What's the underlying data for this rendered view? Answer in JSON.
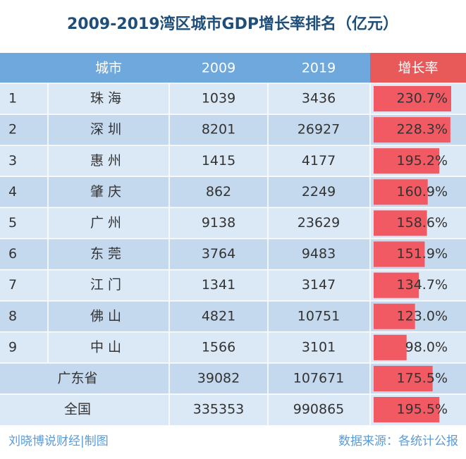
{
  "header": {
    "title": "2009-2019湾区城市GDP增长率排名（亿元）"
  },
  "table": {
    "columns": [
      "城市",
      "2009",
      "2019",
      "增长率"
    ],
    "rows": [
      {
        "rank": "1",
        "city": "珠 海",
        "v2009": 1039,
        "v2019": 3436,
        "growth": {
          "value": 230.7,
          "label": "230.7%"
        }
      },
      {
        "rank": "2",
        "city": "深 圳",
        "v2009": 8201,
        "v2019": 26927,
        "growth": {
          "value": 228.3,
          "label": "228.3%"
        }
      },
      {
        "rank": "3",
        "city": "惠 州",
        "v2009": 1415,
        "v2019": 4177,
        "growth": {
          "value": 195.2,
          "label": "195.2%"
        }
      },
      {
        "rank": "4",
        "city": "肇 庆",
        "v2009": 862,
        "v2019": 2249,
        "growth": {
          "value": 160.9,
          "label": "160.9%"
        }
      },
      {
        "rank": "5",
        "city": "广 州",
        "v2009": 9138,
        "v2019": 23629,
        "growth": {
          "value": 158.6,
          "label": "158.6%"
        }
      },
      {
        "rank": "6",
        "city": "东 莞",
        "v2009": 3764,
        "v2019": 9483,
        "growth": {
          "value": 151.9,
          "label": "151.9%"
        }
      },
      {
        "rank": "7",
        "city": "江 门",
        "v2009": 1341,
        "v2019": 3147,
        "growth": {
          "value": 134.7,
          "label": "134.7%"
        }
      },
      {
        "rank": "8",
        "city": "佛 山",
        "v2009": 4821,
        "v2019": 10751,
        "growth": {
          "value": 123.0,
          "label": "123.0%"
        }
      },
      {
        "rank": "9",
        "city": "中 山",
        "v2009": 1566,
        "v2019": 3101,
        "growth": {
          "value": 98.0,
          "label": "98.0%"
        }
      },
      {
        "city": "广东省",
        "v2009": 39082,
        "v2019": 107671,
        "growth": {
          "value": 175.5,
          "label": "175.5%"
        }
      },
      {
        "city": "全国",
        "v2009": 335353,
        "v2019": 990865,
        "growth": {
          "value": 195.5,
          "label": "195.5%"
        }
      }
    ]
  },
  "footer": {
    "left": "刘晓博说财经|制图",
    "right": "数据来源：各统计公报"
  }
}
